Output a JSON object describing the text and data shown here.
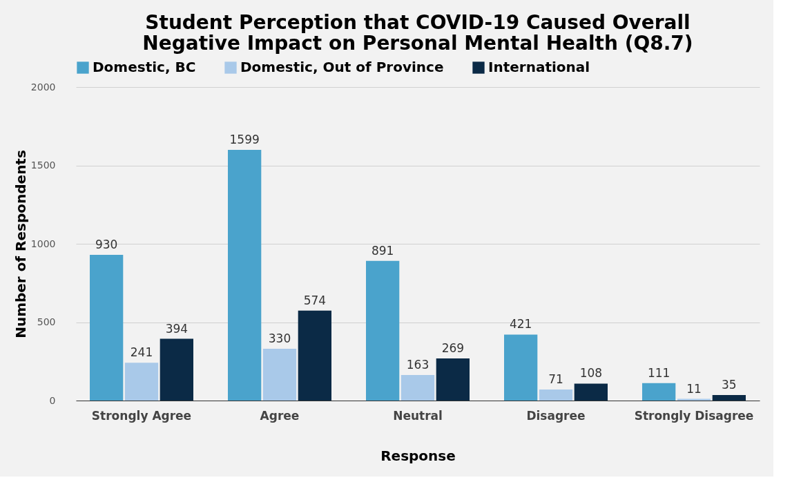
{
  "chart_data": {
    "type": "bar",
    "title": "Student Perception that COVID-19 Caused Overall Negative Impact on Personal Mental Health   (Q8.7)",
    "xlabel": "Response",
    "ylabel": "Number of Respondents",
    "categories": [
      "Strongly Agree",
      "Agree",
      "Neutral",
      "Disagree",
      "Strongly Disagree"
    ],
    "series": [
      {
        "name": "Domestic, BC",
        "color": "#4aa3cc",
        "values": [
          930,
          1599,
          891,
          421,
          111
        ]
      },
      {
        "name": "Domestic, Out of Province",
        "color": "#a9c9e9",
        "values": [
          241,
          330,
          163,
          71,
          11
        ]
      },
      {
        "name": "International",
        "color": "#0b2a46",
        "values": [
          394,
          574,
          269,
          108,
          35
        ]
      }
    ],
    "ylim": [
      0,
      2000
    ],
    "yticks": [
      0,
      500,
      1000,
      1500,
      2000
    ],
    "grid": "y",
    "legend": "top",
    "data_labels": true
  }
}
